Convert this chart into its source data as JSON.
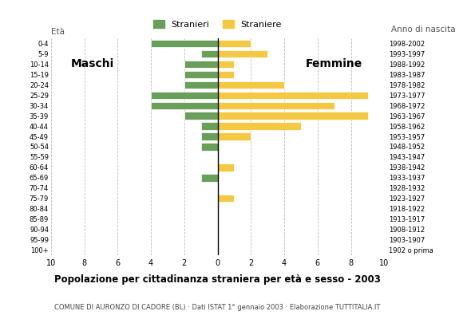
{
  "age_groups": [
    "100+",
    "95-99",
    "90-94",
    "85-89",
    "80-84",
    "75-79",
    "70-74",
    "65-69",
    "60-64",
    "55-59",
    "50-54",
    "45-49",
    "40-44",
    "35-39",
    "30-34",
    "25-29",
    "20-24",
    "15-19",
    "10-14",
    "5-9",
    "0-4"
  ],
  "birth_years": [
    "1902 o prima",
    "1903-1907",
    "1908-1912",
    "1913-1917",
    "1918-1922",
    "1923-1927",
    "1928-1932",
    "1933-1937",
    "1938-1942",
    "1943-1947",
    "1948-1952",
    "1953-1957",
    "1958-1962",
    "1963-1967",
    "1968-1972",
    "1973-1977",
    "1978-1982",
    "1983-1987",
    "1988-1992",
    "1993-1997",
    "1998-2002"
  ],
  "males": [
    0,
    0,
    0,
    0,
    0,
    0,
    0,
    1,
    0,
    0,
    1,
    1,
    1,
    2,
    4,
    4,
    2,
    2,
    2,
    1,
    4
  ],
  "females": [
    0,
    0,
    0,
    0,
    0,
    1,
    0,
    0,
    1,
    0,
    0,
    2,
    5,
    9,
    7,
    9,
    4,
    1,
    1,
    3,
    2
  ],
  "male_color": "#6a9f5b",
  "female_color": "#f5c843",
  "title": "Popolazione per cittadinanza straniera per età e sesso - 2003",
  "subtitle": "COMUNE DI AURONZO DI CADORE (BL) · Dati ISTAT 1° gennaio 2003 · Elaborazione TUTTITALIA.IT",
  "legend_male": "Stranieri",
  "legend_female": "Straniere",
  "label_left": "Maschi",
  "label_right": "Femmine",
  "ylabel_left": "Età",
  "ylabel_right": "Anno di nascita",
  "xlim": 10,
  "background_color": "#ffffff",
  "grid_color": "#bbbbbb"
}
